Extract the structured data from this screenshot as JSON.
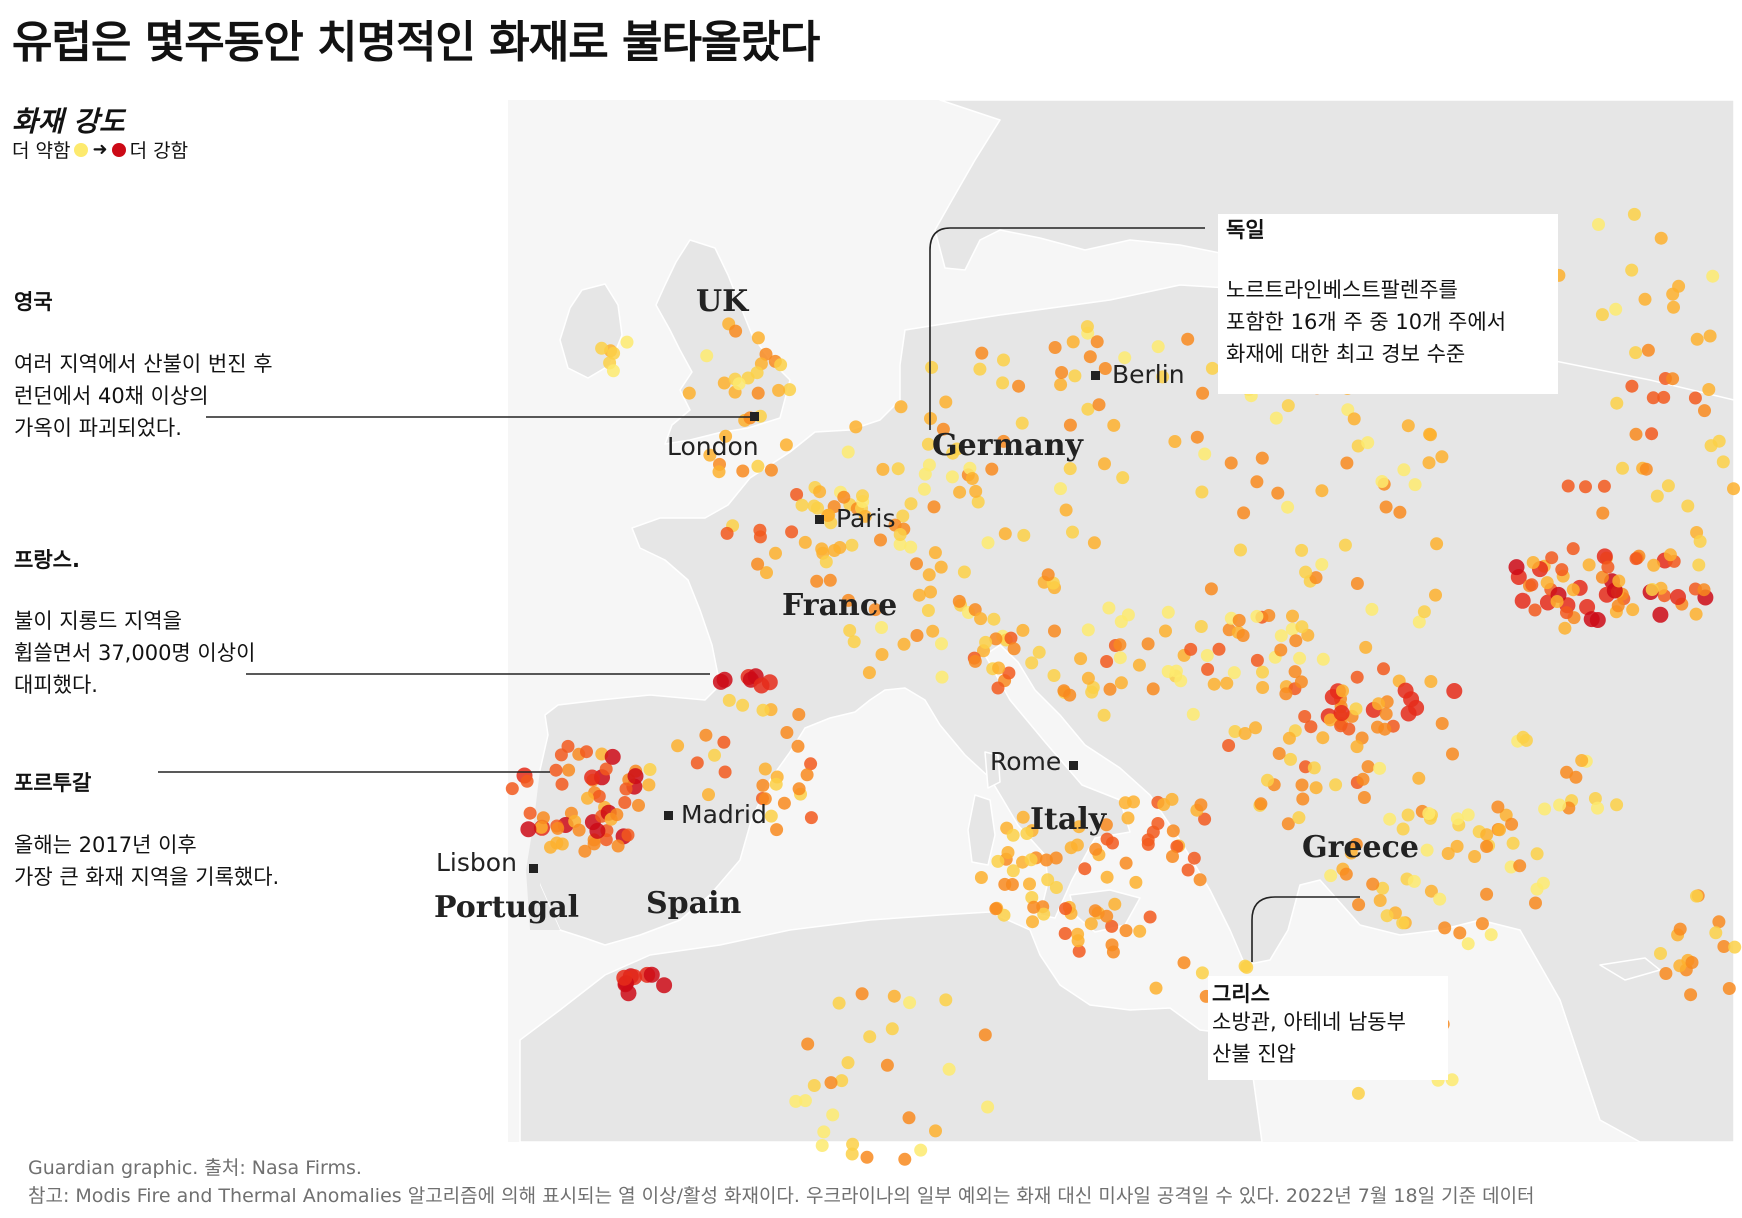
{
  "title": "유럽은 몇주동안 치명적인 화재로 불타올랐다",
  "legend": {
    "title": "화재 강도",
    "weaker": "더 약함",
    "stronger": "더 강함",
    "weak_color": "#fdea6e",
    "strong_color": "#cc0a16"
  },
  "annotations": {
    "uk": {
      "heading": "영국",
      "body": "여러 지역에서 산불이 번진 후\n런던에서 40채 이상의\n가옥이 파괴되었다."
    },
    "france": {
      "heading": "프랑스.",
      "body": "불이 지롱드 지역을\n휩쓸면서 37,000명 이상이\n대피했다."
    },
    "portugal": {
      "heading": "포르투갈",
      "body": "올해는 2017년 이후\n가장 큰 화재 지역을 기록했다."
    },
    "germany": {
      "heading": "독일",
      "body": "노르트라인베스트팔렌주를\n포함한 16개 주 중 10개 주에서\n화재에 대한 최고 경보 수준"
    },
    "greece": {
      "heading": "그리스",
      "body": "소방관, 아테네 남동부\n산불 진압"
    }
  },
  "countries": {
    "uk": "UK",
    "germany": "Germany",
    "france": "France",
    "italy": "Italy",
    "greece": "Greece",
    "spain": "Spain",
    "portugal": "Portugal"
  },
  "cities": {
    "london": "London",
    "berlin": "Berlin",
    "paris": "Paris",
    "rome": "Rome",
    "madrid": "Madrid",
    "lisbon": "Lisbon"
  },
  "colors": {
    "land": "#e6e6e6",
    "sea": "#f6f6f6",
    "intensity_scale": [
      "#fdea6e",
      "#fcd046",
      "#fdb02e",
      "#f88a1e",
      "#f2591d",
      "#e52b1a",
      "#cc0a16"
    ]
  },
  "footer": {
    "credit": "Guardian graphic. 출처: Nasa Firms.",
    "note": "참고: Modis Fire and Thermal Anomalies 알고리즘에 의해 표시되는 열 이상/활성 화재이다. 우크라이나의 일부 예외는 화재 대신 미사일 공격일 수 있다. 2022년 7월 18일 기준 데이터"
  }
}
